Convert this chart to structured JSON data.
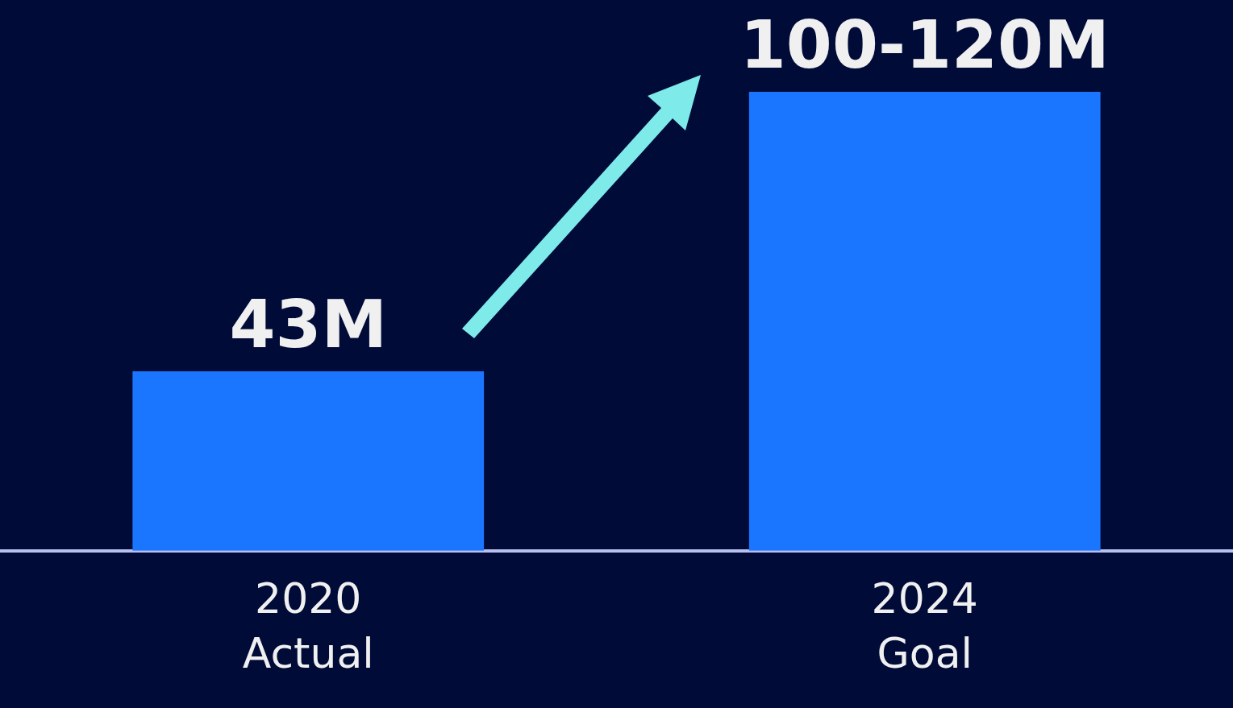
{
  "chart_data": {
    "type": "bar",
    "categories": [
      "2020\nActual",
      "2024\nGoal"
    ],
    "values": [
      43,
      110
    ],
    "value_labels": [
      "43M",
      "100-120M"
    ],
    "color": "#1a75ff",
    "legend": false,
    "grid": false,
    "tick_labels": "x"
  }
}
